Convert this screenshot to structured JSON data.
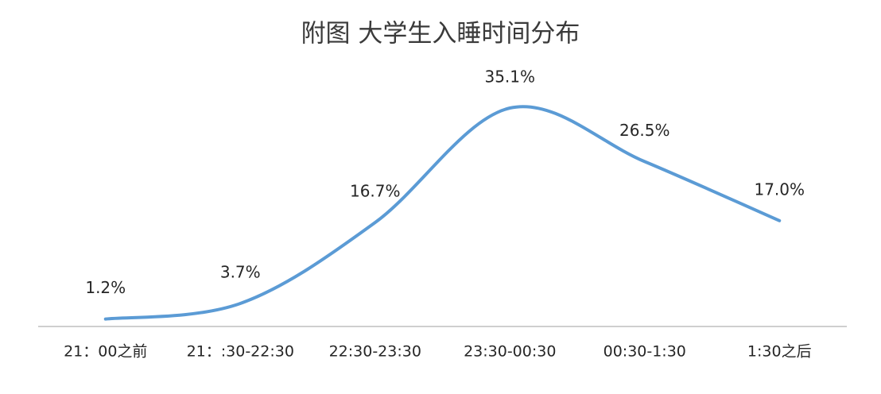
{
  "chart_data": {
    "type": "line",
    "title": "附图  大学生入睡时间分布",
    "categories": [
      "21：00之前",
      "21：:30-22:30",
      "22:30-23:30",
      "23:30-00:30",
      "00:30-1:30",
      "1:30之后"
    ],
    "values": [
      1.2,
      3.7,
      16.7,
      35.1,
      26.5,
      17.0
    ],
    "value_labels": [
      "1.2%",
      "3.7%",
      "16.7%",
      "35.1%",
      "26.5%",
      "17.0%"
    ],
    "color": "#5b9bd5",
    "smooth": true
  }
}
